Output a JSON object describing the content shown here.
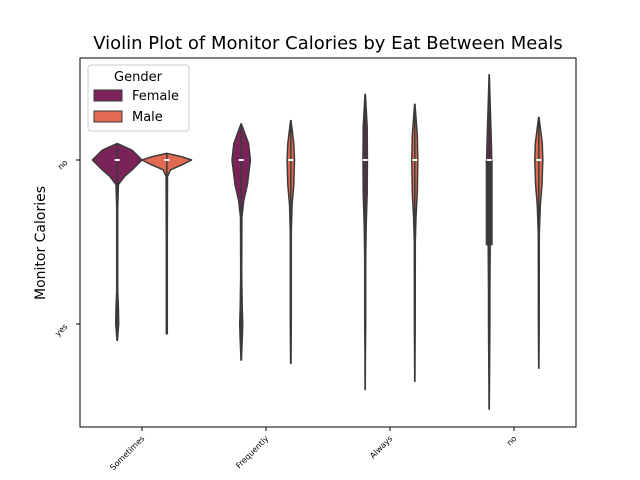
{
  "chart_data": {
    "type": "violin",
    "title": "Violin Plot of Monitor Calories by Eat Between Meals",
    "xlabel": "",
    "ylabel": "Monitor Calories",
    "categories": [
      "Sometimes",
      "Frequently",
      "Always",
      "no"
    ],
    "y_categories": [
      "no",
      "yes"
    ],
    "y_encoding": {
      "no": 0,
      "yes": 1
    },
    "ylim": [
      -0.55,
      1.6
    ],
    "grid": false,
    "legend": {
      "title": "Gender",
      "placement": "top-left",
      "entries": [
        {
          "name": "Female",
          "color": "#7b2359"
        },
        {
          "name": "Male",
          "color": "#e26a52"
        }
      ]
    },
    "series": [
      {
        "name": "Female",
        "color": "#7b2359",
        "violins": [
          {
            "category": "Sometimes",
            "min": -0.1,
            "max": 1.1,
            "median": 0,
            "q1": 0,
            "q3": 0,
            "profile": [
              [
                -0.1,
                0.01
              ],
              [
                -0.06,
                0.6
              ],
              [
                0,
                1.0
              ],
              [
                0.06,
                0.6
              ],
              [
                0.1,
                0.3
              ],
              [
                0.15,
                0.05
              ],
              [
                0.3,
                0.02
              ],
              [
                0.8,
                0.02
              ],
              [
                0.9,
                0.05
              ],
              [
                1.0,
                0.06
              ],
              [
                1.06,
                0.03
              ],
              [
                1.1,
                0.01
              ]
            ]
          },
          {
            "category": "Frequently",
            "min": -0.22,
            "max": 1.22,
            "median": 0,
            "q1": 0,
            "q3": 0,
            "profile": [
              [
                -0.22,
                0.01
              ],
              [
                -0.1,
                0.3
              ],
              [
                0,
                0.37
              ],
              [
                0.15,
                0.25
              ],
              [
                0.25,
                0.1
              ],
              [
                0.35,
                0.03
              ],
              [
                0.7,
                0.02
              ],
              [
                0.9,
                0.04
              ],
              [
                1.0,
                0.06
              ],
              [
                1.1,
                0.04
              ],
              [
                1.22,
                0.01
              ]
            ]
          },
          {
            "category": "Always",
            "min": -0.4,
            "max": 1.4,
            "median": 0,
            "q1": 0,
            "q3": 0,
            "profile": [
              [
                -0.4,
                0.01
              ],
              [
                -0.2,
                0.08
              ],
              [
                0,
                0.09
              ],
              [
                0.2,
                0.08
              ],
              [
                0.4,
                0.04
              ],
              [
                0.6,
                0.02
              ],
              [
                0.8,
                0.02
              ],
              [
                1.0,
                0.02
              ],
              [
                1.2,
                0.01
              ],
              [
                1.4,
                0.005
              ]
            ]
          },
          {
            "category": "no",
            "min": -0.52,
            "max": 1.52,
            "median": 0,
            "q1": 0,
            "q3": 0.52,
            "profile": [
              [
                -0.52,
                0.005
              ],
              [
                -0.3,
                0.05
              ],
              [
                -0.1,
                0.09
              ],
              [
                0,
                0.1
              ],
              [
                0.15,
                0.09
              ],
              [
                0.3,
                0.06
              ],
              [
                0.52,
                0.04
              ],
              [
                0.8,
                0.03
              ],
              [
                1.0,
                0.03
              ],
              [
                1.25,
                0.015
              ],
              [
                1.52,
                0.005
              ]
            ]
          }
        ]
      },
      {
        "name": "Male",
        "color": "#e26a52",
        "violins": [
          {
            "category": "Sometimes",
            "min": -0.04,
            "max": 1.06,
            "median": 0,
            "q1": 0,
            "q3": 0,
            "profile": [
              [
                -0.04,
                0.01
              ],
              [
                -0.02,
                0.6
              ],
              [
                0,
                1.0
              ],
              [
                0.03,
                0.6
              ],
              [
                0.06,
                0.15
              ],
              [
                0.1,
                0.03
              ],
              [
                0.5,
                0.02
              ],
              [
                1.06,
                0.02
              ]
            ]
          },
          {
            "category": "Frequently",
            "min": -0.24,
            "max": 1.24,
            "median": 0,
            "q1": 0,
            "q3": 0,
            "profile": [
              [
                -0.24,
                0.01
              ],
              [
                -0.1,
                0.12
              ],
              [
                0,
                0.15
              ],
              [
                0.15,
                0.12
              ],
              [
                0.28,
                0.05
              ],
              [
                0.45,
                0.02
              ],
              [
                1.0,
                0.02
              ],
              [
                1.24,
                0.01
              ]
            ]
          },
          {
            "category": "Always",
            "min": -0.34,
            "max": 1.35,
            "median": 0,
            "q1": 0,
            "q3": 0,
            "profile": [
              [
                -0.34,
                0.01
              ],
              [
                -0.15,
                0.1
              ],
              [
                0,
                0.12
              ],
              [
                0.2,
                0.1
              ],
              [
                0.35,
                0.05
              ],
              [
                0.5,
                0.02
              ],
              [
                1.0,
                0.015
              ],
              [
                1.35,
                0.005
              ]
            ]
          },
          {
            "category": "no",
            "min": -0.26,
            "max": 1.27,
            "median": 0,
            "q1": 0,
            "q3": 0,
            "profile": [
              [
                -0.26,
                0.01
              ],
              [
                -0.1,
                0.14
              ],
              [
                0,
                0.16
              ],
              [
                0.15,
                0.13
              ],
              [
                0.28,
                0.06
              ],
              [
                0.45,
                0.02
              ],
              [
                1.0,
                0.015
              ],
              [
                1.27,
                0.005
              ]
            ]
          }
        ]
      }
    ]
  },
  "colors": {
    "female": "#7b2359",
    "male": "#e26a52",
    "outline": "#3a3a3a"
  }
}
